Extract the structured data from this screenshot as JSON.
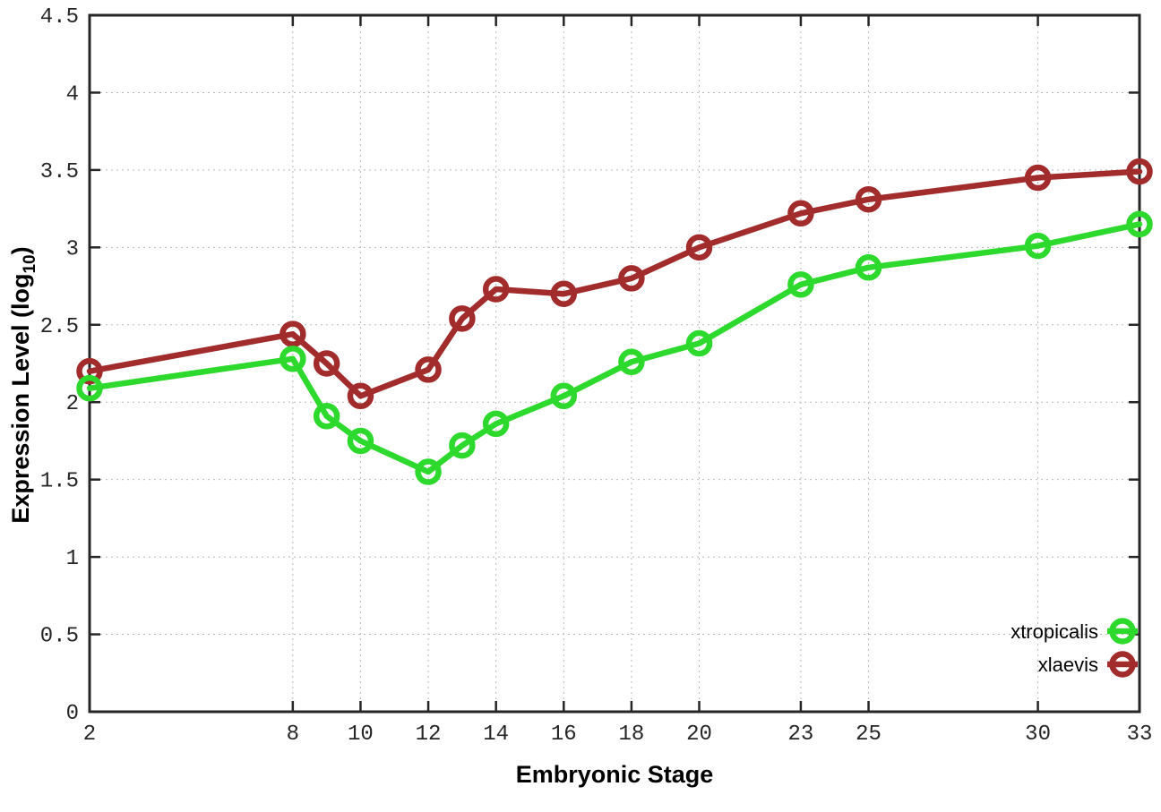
{
  "chart_data": {
    "type": "line",
    "title": "",
    "xlabel": "Embryonic Stage",
    "ylabel": {
      "prefix": "Expression Level (log",
      "sub": "10",
      "suffix": ")"
    },
    "x": [
      2,
      8,
      9,
      10,
      12,
      13,
      14,
      16,
      18,
      20,
      23,
      25,
      30,
      33
    ],
    "series": [
      {
        "name": "xtropicalis",
        "color": "#2dd92d",
        "values": [
          2.09,
          2.28,
          1.91,
          1.75,
          1.55,
          1.72,
          1.86,
          2.04,
          2.26,
          2.38,
          2.76,
          2.87,
          3.01,
          3.15
        ]
      },
      {
        "name": "xlaevis",
        "color": "#a22c2c",
        "values": [
          2.2,
          2.44,
          2.25,
          2.04,
          2.21,
          2.54,
          2.73,
          2.7,
          2.8,
          3.0,
          3.22,
          3.31,
          3.45,
          3.49
        ]
      }
    ],
    "xticks": [
      2,
      8,
      10,
      12,
      14,
      16,
      18,
      20,
      23,
      25,
      30,
      33
    ],
    "yticks": [
      0,
      0.5,
      1,
      1.5,
      2,
      2.5,
      3,
      3.5,
      4,
      4.5
    ],
    "xlim": [
      2,
      33
    ],
    "ylim": [
      0,
      4.5
    ],
    "grid": true,
    "legend_position": "inside-right-lower",
    "legend": [
      {
        "label": "xtropicalis"
      },
      {
        "label": "xlaevis"
      }
    ]
  },
  "style": {
    "grid_color": "#b8b8b8",
    "border_color": "#262626",
    "background": "#ffffff"
  }
}
